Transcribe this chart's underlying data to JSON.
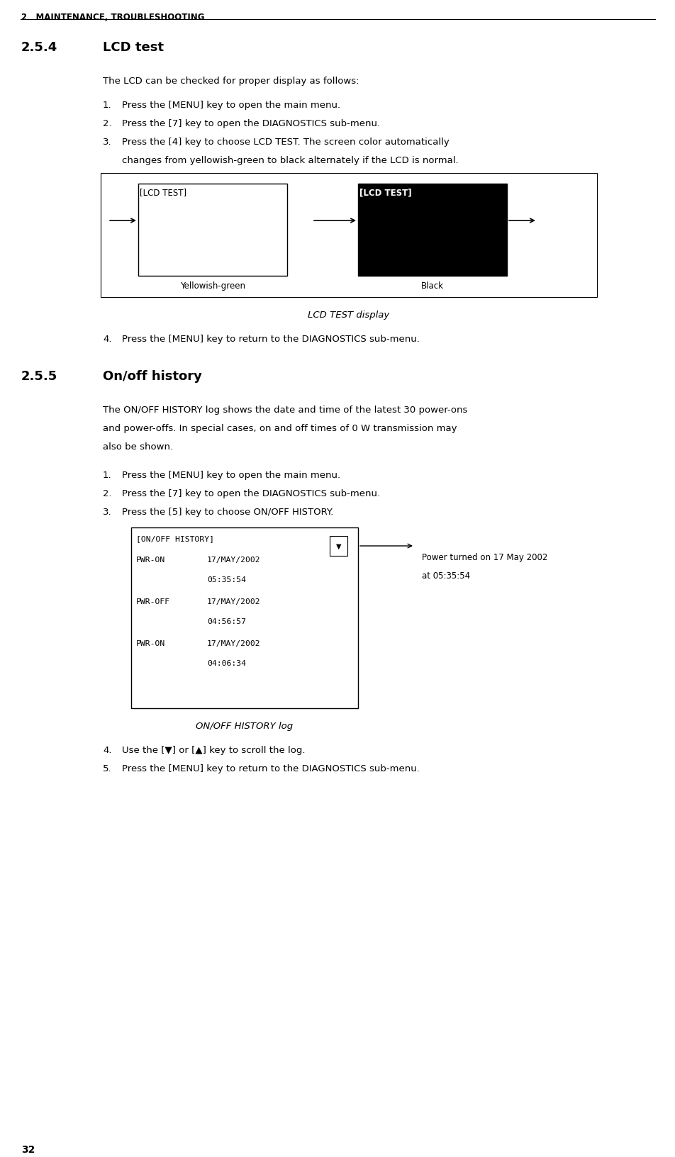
{
  "bg_color": "#ffffff",
  "header_text": "2   MAINTENANCE, TROUBLESHOOTING",
  "section_254_num": "2.5.4",
  "section_254_title": "LCD test",
  "section_254_intro": "The LCD can be checked for proper display as follows:",
  "section_254_step1": "Press the [MENU] key to open the main menu.",
  "section_254_step2": "Press the [7] key to open the DIAGNOSTICS sub-menu.",
  "section_254_step3a": "Press the [4] key to choose LCD TEST. The screen color automatically",
  "section_254_step3b": "changes from yellowish-green to black alternately if the LCD is normal.",
  "lcd_label1": "[LCD TEST]",
  "lcd_label2": "[LCD TEST]",
  "lcd_caption1": "Yellowish-green",
  "lcd_caption2": "Black",
  "lcd_figure_caption": "LCD TEST display",
  "section_254_step4": "Press the [MENU] key to return to the DIAGNOSTICS sub-menu.",
  "section_255_num": "2.5.5",
  "section_255_title": "On/off history",
  "section_255_intro1": "The ON/OFF HISTORY log shows the date and time of the latest 30 power-ons",
  "section_255_intro2": "and power-offs. In special cases, on and off times of 0 W transmission may",
  "section_255_intro3": "also be shown.",
  "section_255_step1": "Press the [MENU] key to open the main menu.",
  "section_255_step2": "Press the [7] key to open the DIAGNOSTICS sub-menu.",
  "section_255_step3": "Press the [5] key to choose ON/OFF HISTORY.",
  "history_annotation1": "Power turned on 17 May 2002",
  "history_annotation2": "at 05:35:54",
  "history_figure_caption": "ON/OFF HISTORY log",
  "section_255_step4": "Use the [▼] or [▲] key to scroll the log.",
  "section_255_step5": "Press the [MENU] key to return to the DIAGNOSTICS sub-menu.",
  "page_number": "32",
  "fig_width": 9.53,
  "fig_height": 16.33,
  "dpi": 100
}
